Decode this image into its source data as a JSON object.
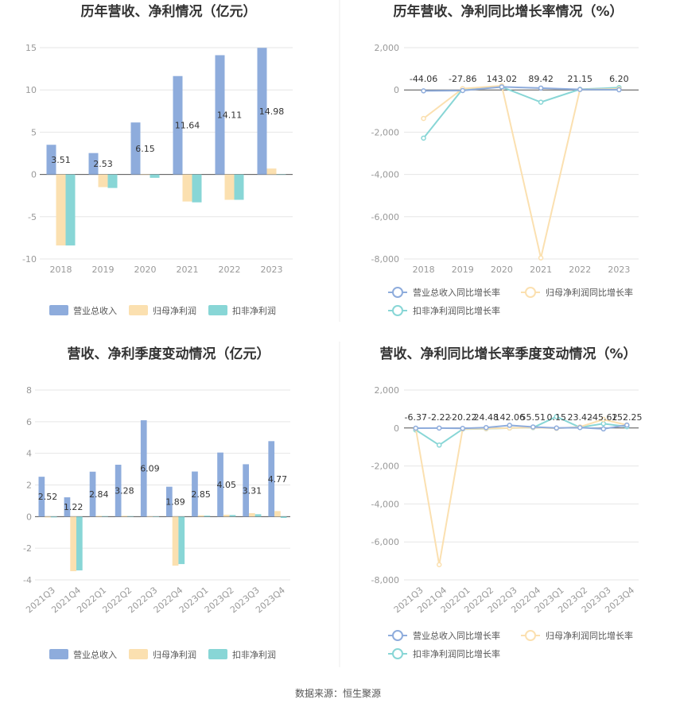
{
  "colors": {
    "revenue": "#8eacdc",
    "parent": "#fbe0b0",
    "nonrec": "#88d6d6",
    "revenueLine": "#8eacdc",
    "parentLine": "#fbe0b0",
    "nonrecLine": "#88d6d6"
  },
  "source_text": "数据来源：恒生聚源",
  "chart_data": [
    {
      "type": "bar",
      "title": "历年营收、净利情况（亿元）",
      "categories": [
        "2018",
        "2019",
        "2020",
        "2021",
        "2022",
        "2023"
      ],
      "ylim": [
        -10,
        15
      ],
      "yticks": [
        15,
        10,
        5,
        0,
        -5,
        -10
      ],
      "series": [
        {
          "name": "营业总收入",
          "values": [
            3.51,
            2.53,
            6.15,
            11.64,
            14.11,
            14.98
          ],
          "labels": [
            "3.51",
            "2.53",
            "6.15",
            "11.64",
            "14.11",
            "14.98"
          ]
        },
        {
          "name": "归母净利润",
          "values": [
            -8.4,
            -1.5,
            0,
            -3.2,
            -3.0,
            0.7
          ]
        },
        {
          "name": "扣非净利润",
          "values": [
            -8.4,
            -1.6,
            -0.4,
            -3.3,
            -3.0,
            0
          ]
        }
      ]
    },
    {
      "type": "line",
      "title": "历年营收、净利同比增长率情况（%）",
      "categories": [
        "2018",
        "2019",
        "2020",
        "2021",
        "2022",
        "2023"
      ],
      "ylim": [
        -8000,
        2000
      ],
      "yticks": [
        2000,
        0,
        -2000,
        -4000,
        -6000,
        -8000
      ],
      "ytick_labels": [
        "2,000",
        "0",
        "-2,000",
        "-4,000",
        "-6,000",
        "-8,000"
      ],
      "series": [
        {
          "name": "营业总收入同比增长率",
          "values": [
            -44.06,
            -27.86,
            143.02,
            89.42,
            21.15,
            6.2
          ],
          "labels": [
            "-44.06",
            "-27.86",
            "143.02",
            "89.42",
            "21.15",
            "6.20"
          ]
        },
        {
          "name": "归母净利润同比增长率",
          "values": [
            -1350,
            60,
            200,
            -7950,
            20,
            50
          ]
        },
        {
          "name": "扣非净利润同比增长率",
          "values": [
            -2280,
            40,
            140,
            -580,
            30,
            110
          ]
        }
      ]
    },
    {
      "type": "bar",
      "title": "营收、净利季度变动情况（亿元）",
      "categories": [
        "2021Q3",
        "2021Q4",
        "2022Q1",
        "2022Q2",
        "2022Q3",
        "2022Q4",
        "2023Q1",
        "2023Q2",
        "2023Q3",
        "2023Q4"
      ],
      "ylim": [
        -4,
        8
      ],
      "yticks": [
        8,
        6,
        4,
        2,
        0,
        -2,
        -4
      ],
      "series": [
        {
          "name": "营业总收入",
          "values": [
            2.52,
            1.22,
            2.84,
            3.28,
            6.09,
            1.89,
            2.85,
            4.05,
            3.31,
            4.77
          ],
          "labels": [
            "2.52",
            "1.22",
            "2.84",
            "3.28",
            "6.09",
            "1.89",
            "2.85",
            "4.05",
            "3.31",
            "4.77"
          ]
        },
        {
          "name": "归母净利润",
          "values": [
            -0.05,
            -3.45,
            0.05,
            0.05,
            0.02,
            -3.1,
            0.08,
            0.12,
            0.22,
            0.35
          ]
        },
        {
          "name": "扣非净利润",
          "values": [
            -0.05,
            -3.4,
            0.03,
            0.03,
            0.01,
            -3.0,
            0.06,
            0.1,
            0.15,
            -0.08
          ]
        }
      ]
    },
    {
      "type": "line",
      "title": "营收、净利同比增长率季度变动情况（%）",
      "categories": [
        "2021Q3",
        "2021Q4",
        "2022Q1",
        "2022Q2",
        "2022Q3",
        "2022Q4",
        "2023Q1",
        "2023Q2",
        "2023Q3",
        "2023Q4"
      ],
      "ylim": [
        -8000,
        2000
      ],
      "yticks": [
        2000,
        0,
        -2000,
        -4000,
        -6000,
        -8000
      ],
      "ytick_labels": [
        "2,000",
        "0",
        "-2,000",
        "-4,000",
        "-6,000",
        "-8,000"
      ],
      "series": [
        {
          "name": "营业总收入同比增长率",
          "values": [
            -6.37,
            -2.22,
            -20.22,
            24.48,
            142.06,
            55.51,
            0.15,
            23.42,
            -45.62,
            152.25
          ],
          "labels": [
            "-6.37",
            "-2.22",
            "-20.22",
            "24.48",
            "142.06",
            "55.51",
            "0.15",
            "23.42",
            "-45.62",
            "152.25"
          ]
        },
        {
          "name": "归母净利润同比增长率",
          "values": [
            -20,
            -7200,
            -50,
            -30,
            0,
            30,
            -20,
            60,
            450,
            160
          ]
        },
        {
          "name": "扣非净利润同比增长率",
          "values": [
            -100,
            -900,
            -60,
            -40,
            0,
            20,
            600,
            30,
            230,
            70
          ]
        }
      ]
    }
  ]
}
